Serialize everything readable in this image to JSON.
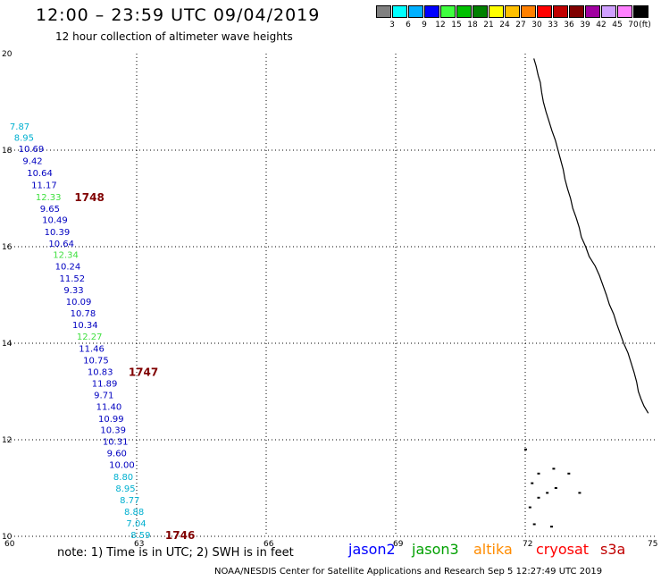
{
  "header": {
    "title": "12:00 – 23:59 UTC 09/04/2019",
    "subtitle": "12 hour collection of altimeter wave heights"
  },
  "colorbar": {
    "colors": [
      "#808080",
      "#00ffff",
      "#00b0ff",
      "#0000ff",
      "#40ff40",
      "#00c000",
      "#008000",
      "#ffff00",
      "#ffc000",
      "#ff8000",
      "#ff0000",
      "#c00000",
      "#800000",
      "#a000a0",
      "#d0a0ff",
      "#ff80ff",
      "#000000"
    ],
    "ticks": [
      "3",
      "6",
      "9",
      "12",
      "15",
      "18",
      "21",
      "24",
      "27",
      "30",
      "33",
      "36",
      "39",
      "42",
      "45",
      "70"
    ],
    "unit": "(ft)"
  },
  "axes": {
    "lat_labels": [
      "20",
      "18",
      "16",
      "14",
      "12",
      "10"
    ],
    "lon_labels": [
      "60",
      "63",
      "66",
      "69",
      "72",
      "75"
    ]
  },
  "wave_readings": [
    {
      "value": "7.87",
      "lat": 18.48,
      "lon": 60.35,
      "color": "#00b0d0"
    },
    {
      "value": "8.95",
      "lat": 18.25,
      "lon": 60.45,
      "color": "#00b0d0"
    },
    {
      "value": "10.69",
      "lat": 18.02,
      "lon": 60.55,
      "color": "#0000c0"
    },
    {
      "value": "9.42",
      "lat": 17.77,
      "lon": 60.65,
      "color": "#0000c0"
    },
    {
      "value": "10.64",
      "lat": 17.52,
      "lon": 60.75,
      "color": "#0000c0"
    },
    {
      "value": "11.17",
      "lat": 17.27,
      "lon": 60.85,
      "color": "#0000c0"
    },
    {
      "value": "12.33",
      "lat": 17.02,
      "lon": 60.95,
      "color": "#40e040"
    },
    {
      "value": "9.65",
      "lat": 16.78,
      "lon": 61.05,
      "color": "#0000c0"
    },
    {
      "value": "10.49",
      "lat": 16.55,
      "lon": 61.1,
      "color": "#0000c0"
    },
    {
      "value": "10.39",
      "lat": 16.3,
      "lon": 61.15,
      "color": "#0000c0"
    },
    {
      "value": "10.64",
      "lat": 16.06,
      "lon": 61.25,
      "color": "#0000c0"
    },
    {
      "value": "12.34",
      "lat": 15.82,
      "lon": 61.35,
      "color": "#40e040"
    },
    {
      "value": "10.24",
      "lat": 15.58,
      "lon": 61.4,
      "color": "#0000c0"
    },
    {
      "value": "11.52",
      "lat": 15.33,
      "lon": 61.5,
      "color": "#0000c0"
    },
    {
      "value": "9.33",
      "lat": 15.09,
      "lon": 61.6,
      "color": "#0000c0"
    },
    {
      "value": "10.09",
      "lat": 14.85,
      "lon": 61.65,
      "color": "#0000c0"
    },
    {
      "value": "10.78",
      "lat": 14.61,
      "lon": 61.75,
      "color": "#0000c0"
    },
    {
      "value": "10.34",
      "lat": 14.37,
      "lon": 61.8,
      "color": "#0000c0"
    },
    {
      "value": "12.27",
      "lat": 14.13,
      "lon": 61.9,
      "color": "#40e040"
    },
    {
      "value": "11.46",
      "lat": 13.88,
      "lon": 61.95,
      "color": "#0000c0"
    },
    {
      "value": "10.75",
      "lat": 13.64,
      "lon": 62.05,
      "color": "#0000c0"
    },
    {
      "value": "10.83",
      "lat": 13.4,
      "lon": 62.15,
      "color": "#0000c0"
    },
    {
      "value": "11.89",
      "lat": 13.16,
      "lon": 62.25,
      "color": "#0000c0"
    },
    {
      "value": "9.71",
      "lat": 12.92,
      "lon": 62.3,
      "color": "#0000c0"
    },
    {
      "value": "11.40",
      "lat": 12.68,
      "lon": 62.35,
      "color": "#0000c0"
    },
    {
      "value": "10.99",
      "lat": 12.43,
      "lon": 62.4,
      "color": "#0000c0"
    },
    {
      "value": "10.39",
      "lat": 12.19,
      "lon": 62.45,
      "color": "#0000c0"
    },
    {
      "value": "10.31",
      "lat": 11.95,
      "lon": 62.5,
      "color": "#0000c0"
    },
    {
      "value": "9.60",
      "lat": 11.71,
      "lon": 62.6,
      "color": "#0000c0"
    },
    {
      "value": "10.00",
      "lat": 11.47,
      "lon": 62.65,
      "color": "#0000c0"
    },
    {
      "value": "8.80",
      "lat": 11.22,
      "lon": 62.75,
      "color": "#00b0d0"
    },
    {
      "value": "8.95",
      "lat": 10.98,
      "lon": 62.8,
      "color": "#00b0d0"
    },
    {
      "value": "8.77",
      "lat": 10.74,
      "lon": 62.9,
      "color": "#00b0d0"
    },
    {
      "value": "8.88",
      "lat": 10.5,
      "lon": 63.0,
      "color": "#00b0d0"
    },
    {
      "value": "7.04",
      "lat": 10.26,
      "lon": 63.05,
      "color": "#00b0d0"
    },
    {
      "value": "8.59",
      "lat": 10.02,
      "lon": 63.15,
      "color": "#00b0d0"
    }
  ],
  "time_labels": [
    {
      "value": "1748",
      "lat": 17.02,
      "lon": 61.85,
      "color": "#800000"
    },
    {
      "value": "1747",
      "lat": 13.4,
      "lon": 63.1,
      "color": "#800000"
    },
    {
      "value": "1746",
      "lat": 10.02,
      "lon": 63.95,
      "color": "#800000"
    }
  ],
  "legend": {
    "note": "note:  1) Time is in UTC;  2) SWH is in feet",
    "satellites": [
      {
        "name": "jason2",
        "color": "#0000ff"
      },
      {
        "name": "jason3",
        "color": "#00a000"
      },
      {
        "name": "altika",
        "color": "#ff8c00"
      },
      {
        "name": "cryosat",
        "color": "#ff0000"
      },
      {
        "name": "s3a",
        "color": "#c00000"
      }
    ]
  },
  "footer": "NOAA/NESDIS Center for Satellite Applications and Research    Sep  5 12:27:49 UTC 2019"
}
